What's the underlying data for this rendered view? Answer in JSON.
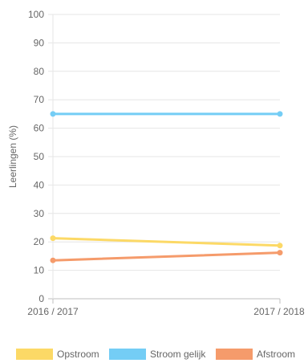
{
  "chart_data": {
    "type": "line",
    "categories": [
      "2016 / 2017",
      "2017 / 2018"
    ],
    "series": [
      {
        "name": "Opstroom",
        "values": [
          21.3,
          18.7
        ],
        "color": "#fcd966"
      },
      {
        "name": "Stroom gelijk",
        "values": [
          65,
          65
        ],
        "color": "#74cdf5"
      },
      {
        "name": "Afstroom",
        "values": [
          13.5,
          16.2
        ],
        "color": "#f59b6b"
      }
    ],
    "ylabel": "Leerlingen (%)",
    "xlabel": "",
    "ylim": [
      0,
      100
    ],
    "yticks": [
      0,
      10,
      20,
      30,
      40,
      50,
      60,
      70,
      80,
      90,
      100
    ],
    "grid": true,
    "legend_position": "bottom"
  }
}
